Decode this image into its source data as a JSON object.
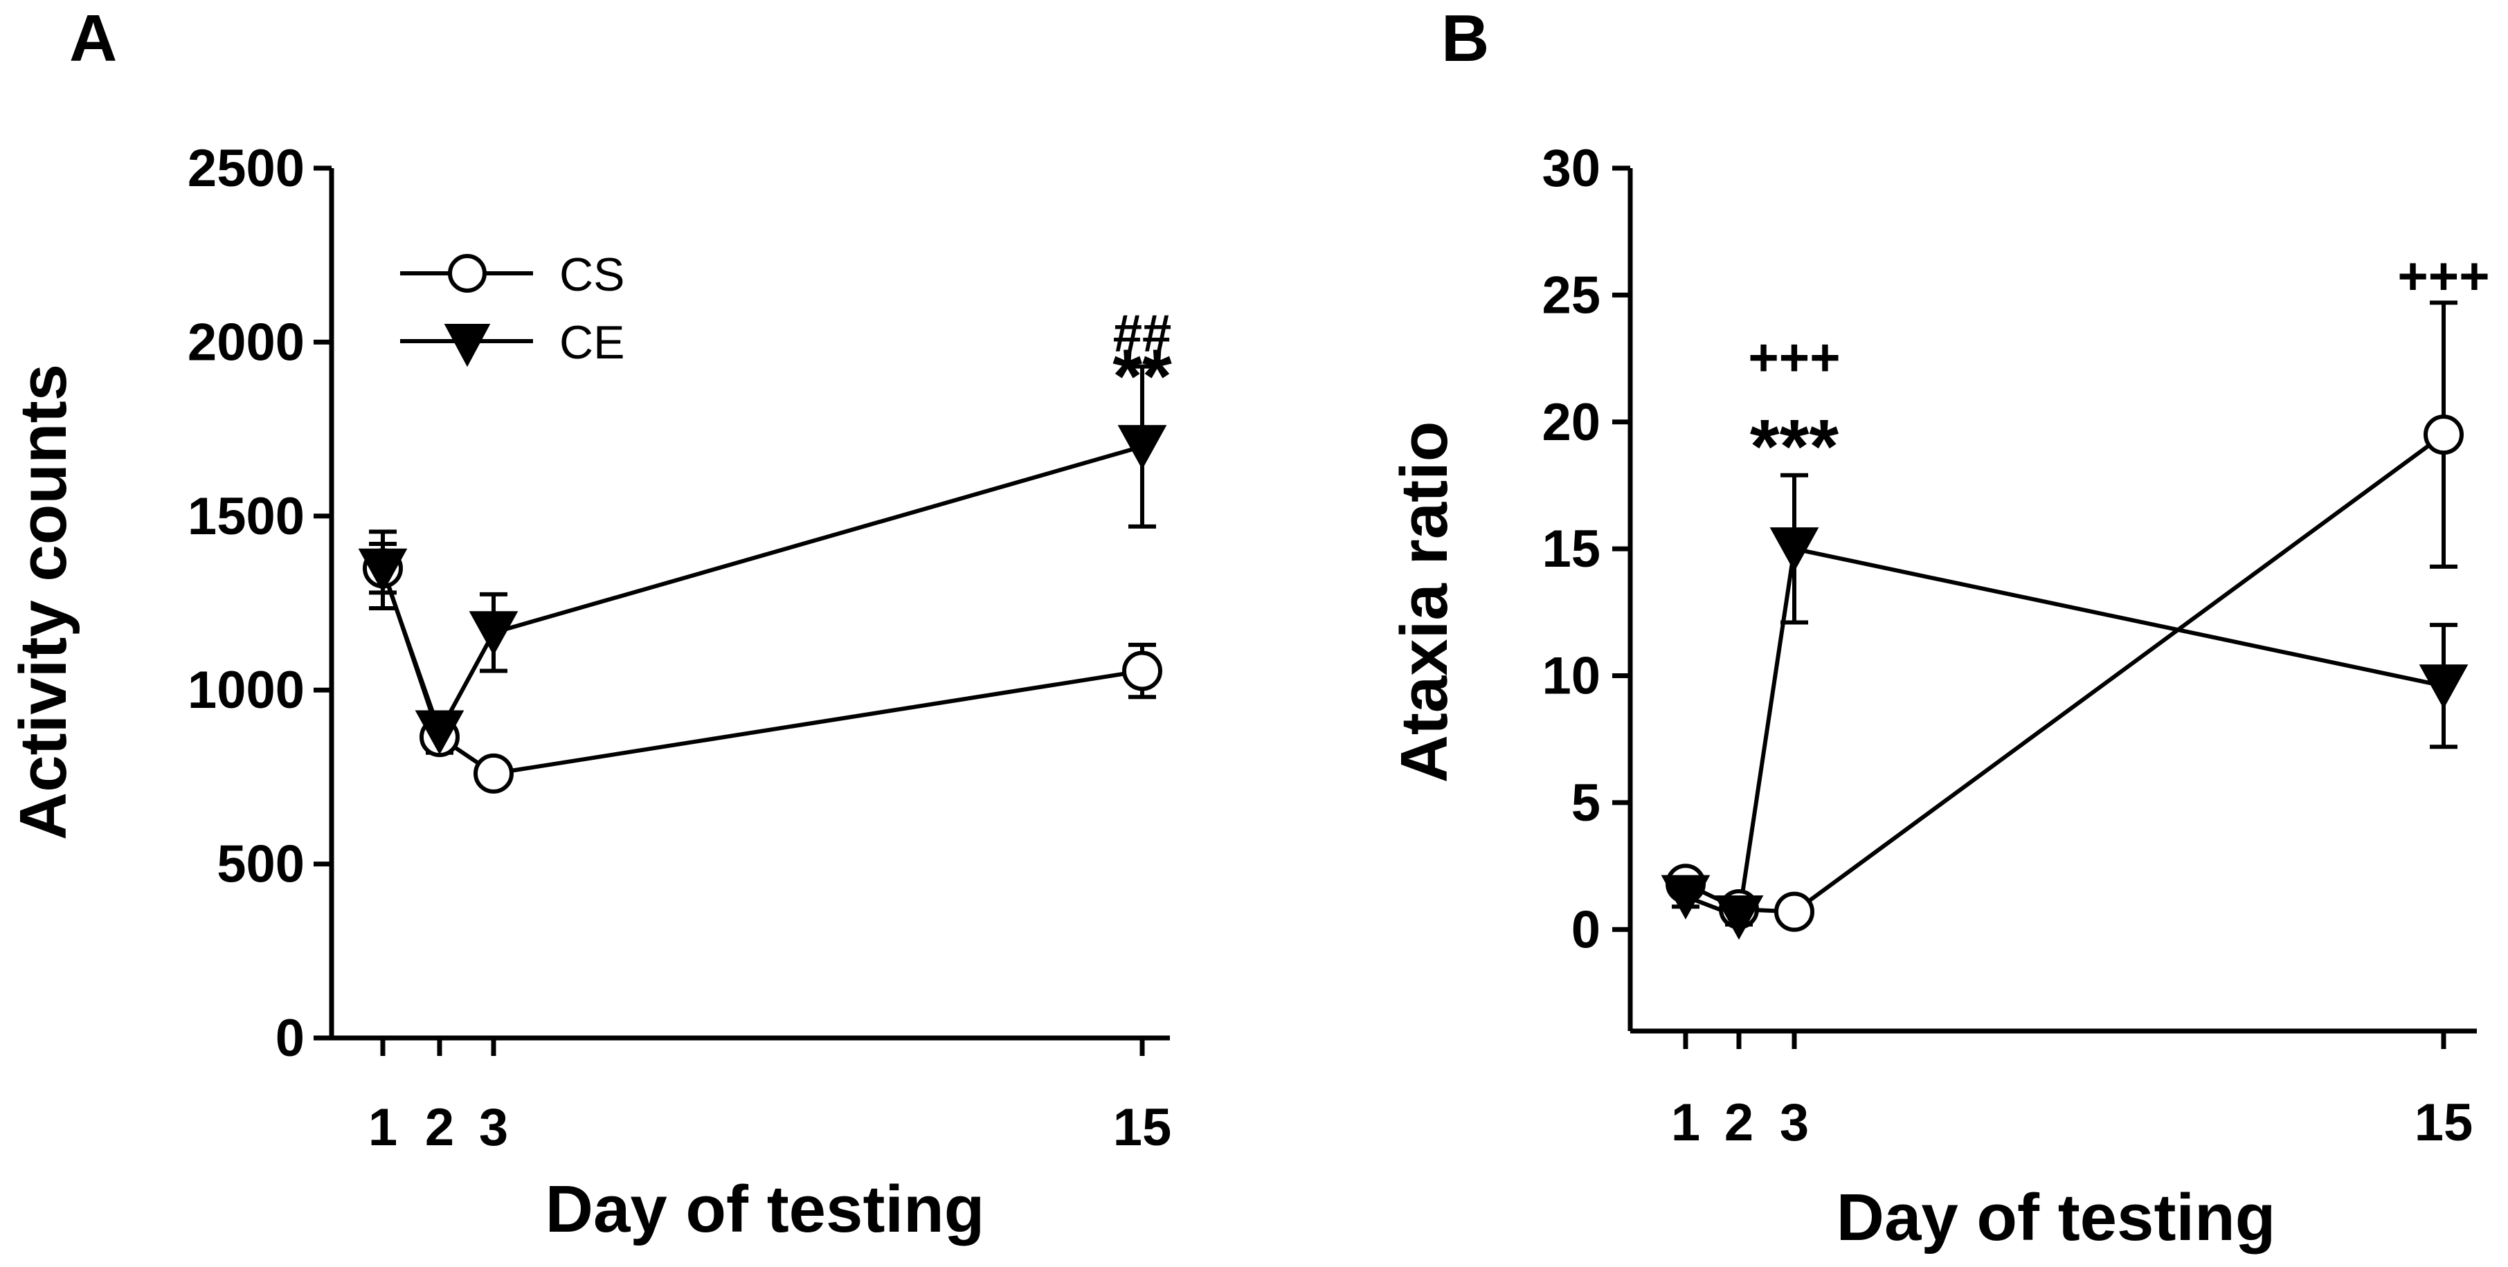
{
  "chart_data": [
    {
      "panel": "A",
      "type": "line",
      "title": "",
      "xlabel": "Day of testing",
      "ylabel": "Activity counts",
      "x": [
        1,
        2,
        3,
        15
      ],
      "x_ticks": [
        "1",
        "2",
        "3",
        "15"
      ],
      "ylim": [
        0,
        2500
      ],
      "y_ticks": [
        "0",
        "500",
        "1000",
        "1500",
        "2000",
        "2500"
      ],
      "grid": false,
      "legend": {
        "placement": "top-left",
        "entries": [
          "CS",
          "CE"
        ]
      },
      "series": [
        {
          "name": "CS",
          "marker": "open-circle",
          "values": [
            1350,
            865,
            760,
            1055
          ],
          "error": [
            70,
            45,
            35,
            75
          ]
        },
        {
          "name": "CE",
          "marker": "filled-triangle-down",
          "values": [
            1345,
            880,
            1165,
            1700
          ],
          "error": [
            110,
            45,
            110,
            230
          ]
        }
      ],
      "annotations": [
        {
          "text": "##",
          "x": 15,
          "above": 2030
        },
        {
          "text": "**",
          "x": 15,
          "above": 1950
        }
      ]
    },
    {
      "panel": "B",
      "type": "line",
      "title": "",
      "xlabel": "Day of testing",
      "ylabel": "Ataxia ratio",
      "x": [
        1,
        2,
        3,
        15
      ],
      "x_ticks": [
        "1",
        "2",
        "3",
        "15"
      ],
      "ylim": [
        -4,
        30
      ],
      "y_ticks": [
        "0",
        "5",
        "10",
        "15",
        "20",
        "25",
        "30"
      ],
      "grid": false,
      "legend": null,
      "series": [
        {
          "name": "CS",
          "marker": "open-circle",
          "values": [
            1.8,
            0.8,
            0.7,
            19.5
          ],
          "error": [
            0.4,
            0.3,
            0.3,
            5.2
          ]
        },
        {
          "name": "CE",
          "marker": "filled-triangle-down",
          "values": [
            1.3,
            0.5,
            15.0,
            9.6
          ],
          "error": [
            0.4,
            0.3,
            2.9,
            2.4
          ]
        }
      ],
      "annotations": [
        {
          "text": "+++",
          "x": 3,
          "above": 22.6
        },
        {
          "text": "***",
          "x": 3,
          "above": 19.7
        },
        {
          "text": "+++",
          "x": 15,
          "above": 25.8
        }
      ]
    }
  ],
  "panel_labels": [
    "A",
    "B"
  ]
}
